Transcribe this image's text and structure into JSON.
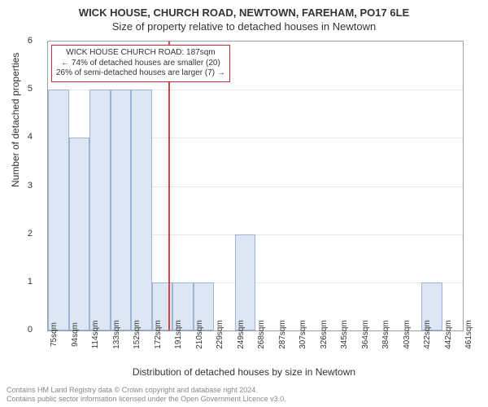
{
  "title": {
    "main": "WICK HOUSE, CHURCH ROAD, NEWTOWN, FAREHAM, PO17 6LE",
    "sub": "Size of property relative to detached houses in Newtown"
  },
  "chart": {
    "type": "histogram",
    "ylabel": "Number of detached properties",
    "xlabel": "Distribution of detached houses by size in Newtown",
    "ylim": [
      0,
      6
    ],
    "yticks": [
      0,
      1,
      2,
      3,
      4,
      5,
      6
    ],
    "categories": [
      "75sqm",
      "94sqm",
      "114sqm",
      "133sqm",
      "152sqm",
      "172sqm",
      "191sqm",
      "210sqm",
      "229sqm",
      "249sqm",
      "268sqm",
      "287sqm",
      "307sqm",
      "326sqm",
      "345sqm",
      "364sqm",
      "384sqm",
      "403sqm",
      "422sqm",
      "442sqm",
      "461sqm"
    ],
    "values_start": 1,
    "values": [
      5,
      4,
      5,
      5,
      5,
      1,
      1,
      1,
      0,
      2,
      0,
      0,
      0,
      0,
      0,
      0,
      0,
      0,
      1
    ],
    "bar_fill": "#dde6f3",
    "bar_stroke": "#9cb3d6",
    "grid_color": "#e6e6e6",
    "border_color": "#9aa0a6",
    "marker": {
      "position_index": 6,
      "color": "#d04848"
    },
    "callout": {
      "line1": "WICK HOUSE CHURCH ROAD: 187sqm",
      "line2": "← 74% of detached houses are smaller (20)",
      "line3": "26% of semi-detached houses are larger (7) →",
      "border_color": "#c03030"
    }
  },
  "footer": {
    "line1": "Contains HM Land Registry data © Crown copyright and database right 2024.",
    "line2": "Contains public sector information licensed under the Open Government Licence v3.0."
  }
}
